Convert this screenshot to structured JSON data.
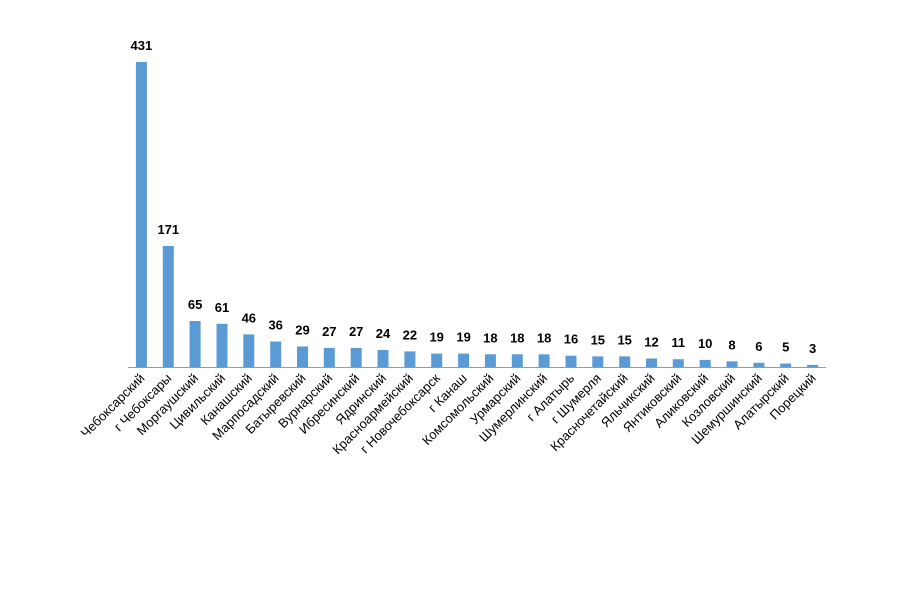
{
  "chart_data": {
    "type": "bar",
    "title": "",
    "xlabel": "",
    "ylabel": "",
    "ylim": [
      0,
      431
    ],
    "grid": false,
    "legend": "none",
    "bar_color": "#5b9bd5",
    "categories": [
      "Чебоксарский",
      "г Чебоксары",
      "Моргаушский",
      "Цивильский",
      "Канашский",
      "Марпосадский",
      "Батыревский",
      "Вурнарский",
      "Ибресинский",
      "Ядринский",
      "Красноармейский",
      "г Новочебоксарск",
      "г Канаш",
      "Комсомольский",
      "Урмарский",
      "Шумерлинский",
      "г Алатырь",
      "г Шумерля",
      "Красночетайский",
      "Яльчикский",
      "Янтиковский",
      "Аликовский",
      "Козловский",
      "Шемуршинский",
      "Алатырский",
      "Порецкий"
    ],
    "values": [
      431,
      171,
      65,
      61,
      46,
      36,
      29,
      27,
      27,
      24,
      22,
      19,
      19,
      18,
      18,
      18,
      16,
      15,
      15,
      12,
      11,
      10,
      8,
      6,
      5,
      3
    ]
  }
}
